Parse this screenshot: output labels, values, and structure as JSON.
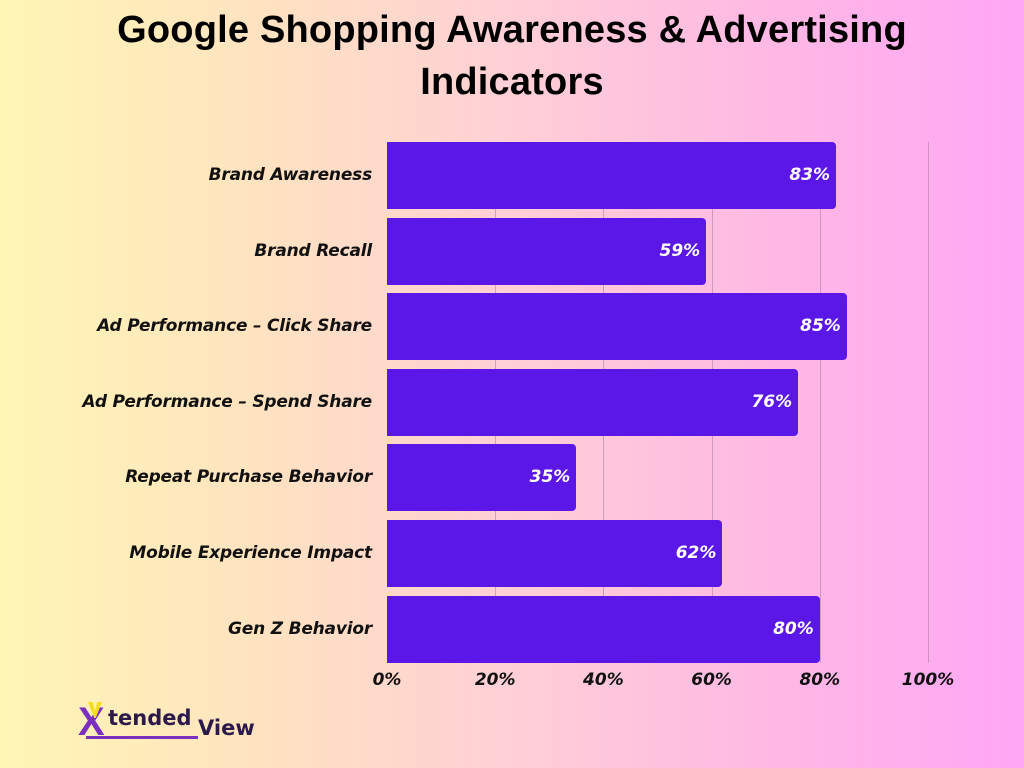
{
  "title": "Google Shopping Awareness & Advertising Indicators",
  "title_line1": "Google Shopping Awareness & Advertising",
  "title_line2": "Indicators",
  "colors": {
    "bar": "#5b17e8",
    "bar_label": "#ffffff",
    "background_left": "#fff6b5",
    "background_right": "#ffa6f5"
  },
  "logo": {
    "part1": "tended",
    "part2": "View",
    "letter": "X"
  },
  "chart_data": {
    "type": "bar",
    "orientation": "horizontal",
    "title": "Google Shopping Awareness & Advertising Indicators",
    "xlabel": "",
    "ylabel": "",
    "xlim": [
      0,
      100
    ],
    "grid": true,
    "legend": null,
    "categories": [
      "Brand Awareness",
      "Brand Recall",
      "Ad Performance – Click Share",
      "Ad Performance – Spend Share",
      "Repeat Purchase Behavior",
      "Mobile Experience Impact",
      "Gen Z Behavior"
    ],
    "values": [
      83,
      59,
      85,
      76,
      35,
      62,
      80
    ],
    "value_labels": [
      "83%",
      "59%",
      "85%",
      "76%",
      "35%",
      "62%",
      "80%"
    ],
    "x_ticks": [
      "0%",
      "20%",
      "40%",
      "60%",
      "80%",
      "100%"
    ],
    "x_tick_values": [
      0,
      20,
      40,
      60,
      80,
      100
    ]
  }
}
